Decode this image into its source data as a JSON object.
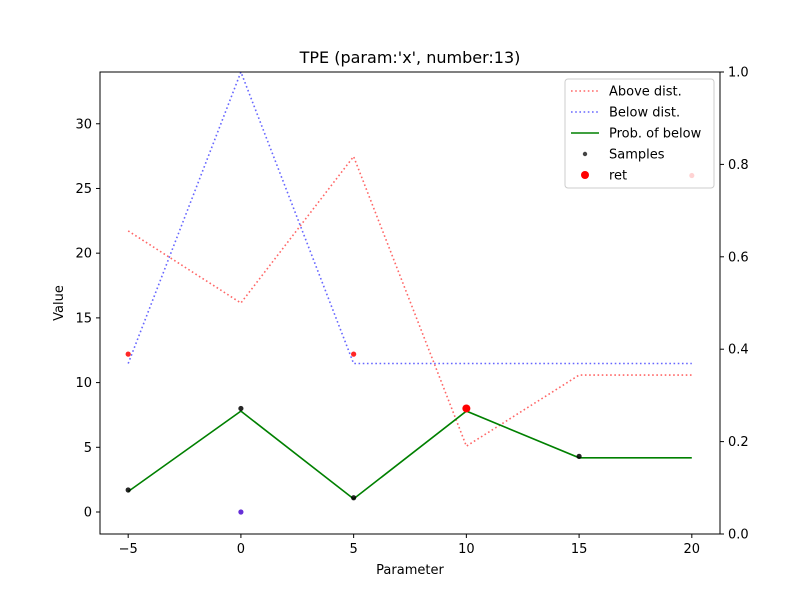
{
  "chart_data": {
    "type": "line",
    "title": "TPE (param:'x', number:13)",
    "xlabel": "Parameter",
    "ylabel": "Value",
    "xlim": [
      -6.25,
      21.25
    ],
    "ylim": [
      -1.7,
      34.0
    ],
    "y2lim": [
      0.0,
      1.0
    ],
    "x_ticks": [
      -5,
      0,
      5,
      10,
      15,
      20
    ],
    "y_ticks": [
      0,
      5,
      10,
      15,
      20,
      25,
      30
    ],
    "y2_ticks": [
      0.0,
      0.2,
      0.4,
      0.6,
      0.8,
      1.0
    ],
    "x_tick_labels": [
      "−5",
      "0",
      "5",
      "10",
      "15",
      "20"
    ],
    "y_tick_labels": [
      "0",
      "5",
      "10",
      "15",
      "20",
      "25",
      "30"
    ],
    "y2_tick_labels": [
      "0.0",
      "0.2",
      "0.4",
      "0.6",
      "0.8",
      "1.0"
    ],
    "grid": false,
    "legend_position": "top-right",
    "series": [
      {
        "name": "Above dist.",
        "axis": "right",
        "style": "dotted",
        "color": "#ff0000",
        "opacity": 0.6,
        "x": [
          -5,
          0,
          5,
          10,
          15,
          20
        ],
        "y": [
          0.656,
          0.5,
          0.817,
          0.19,
          0.344,
          0.344
        ]
      },
      {
        "name": "Below dist.",
        "axis": "right",
        "style": "dotted",
        "color": "#0000ff",
        "opacity": 0.6,
        "x": [
          -5,
          0,
          5,
          10,
          15,
          20
        ],
        "y": [
          0.369,
          1.0,
          0.369,
          0.369,
          0.369,
          0.369
        ]
      },
      {
        "name": "Prob. of below",
        "axis": "right",
        "style": "solid",
        "color": "#008000",
        "opacity": 1.0,
        "x": [
          -5,
          0,
          5,
          10,
          15,
          20
        ],
        "y": [
          0.092,
          0.266,
          0.076,
          0.266,
          0.165,
          0.165
        ]
      }
    ],
    "samples": {
      "name": "Samples",
      "axis": "left",
      "points": [
        {
          "x": -5,
          "y": 1.7,
          "color": "#000000"
        },
        {
          "x": 0,
          "y": 8.0,
          "color": "#000000"
        },
        {
          "x": 5,
          "y": 1.1,
          "color": "#000000"
        },
        {
          "x": 15,
          "y": 4.3,
          "color": "#000000"
        },
        {
          "x": -5,
          "y": 12.2,
          "color": "#ff0000"
        },
        {
          "x": 5,
          "y": 12.2,
          "color": "#ff0000"
        },
        {
          "x": 20,
          "y": 26.0,
          "color": "#ff0000"
        },
        {
          "x": 0,
          "y": 0.0,
          "color": "#4b0bd0"
        }
      ]
    },
    "ret": {
      "name": "ret",
      "axis": "left",
      "x": 10,
      "y": 8.0,
      "color": "#ff0000"
    }
  }
}
